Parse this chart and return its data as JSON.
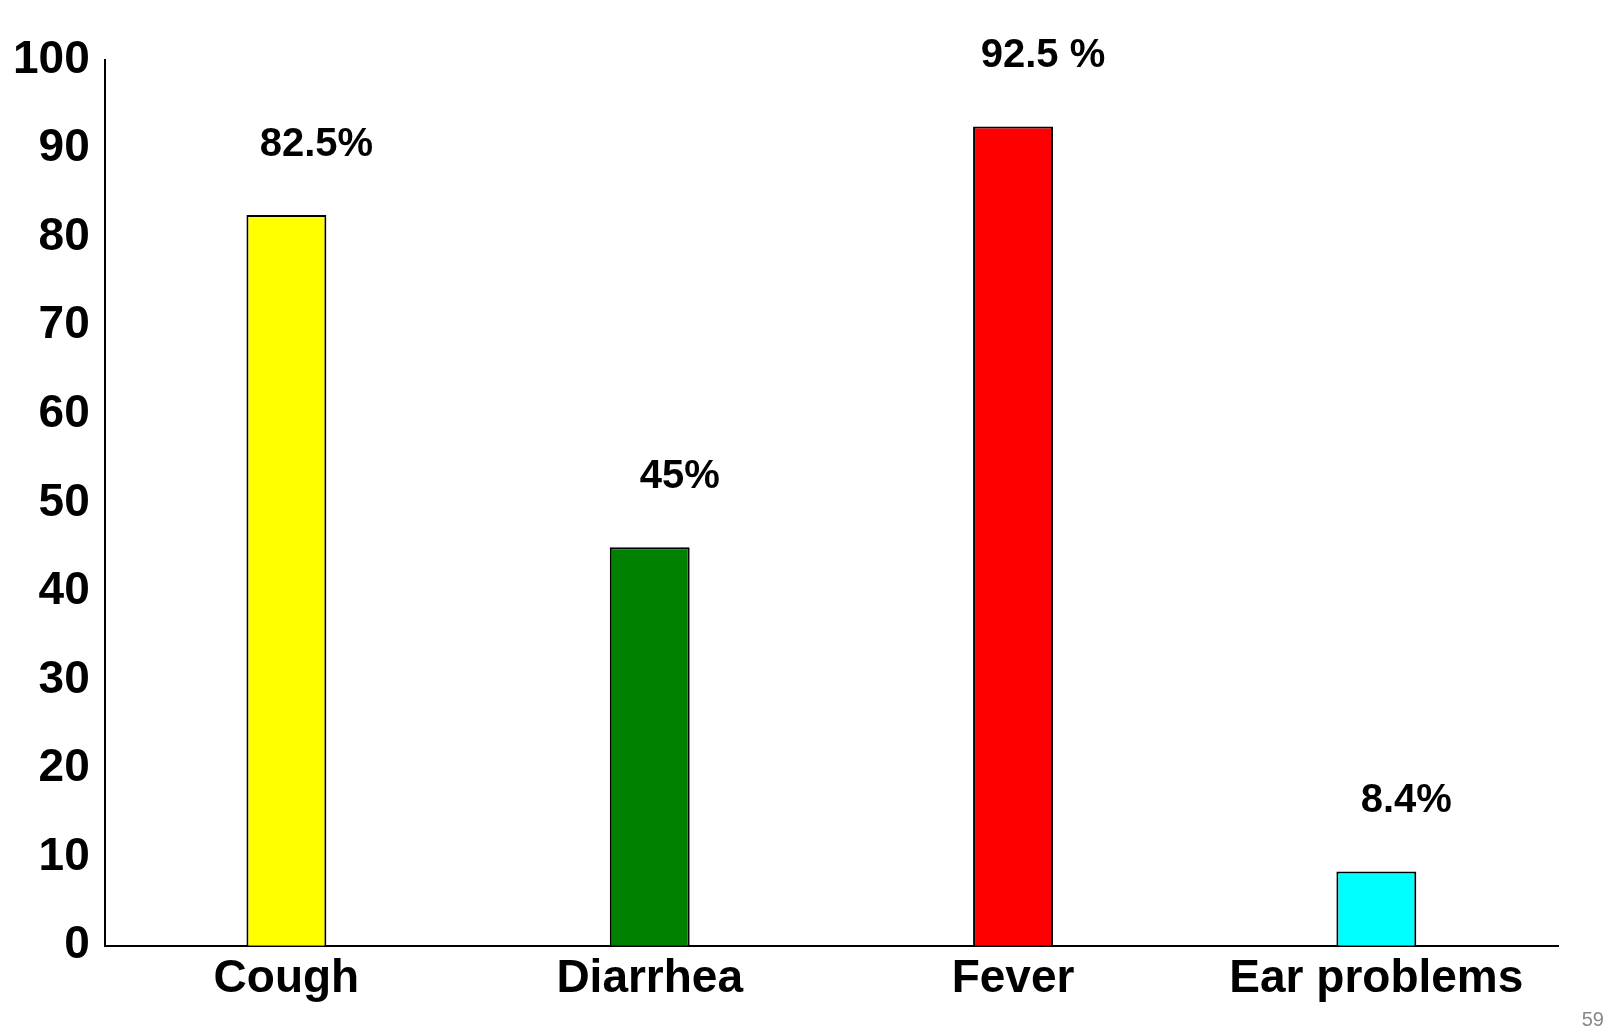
{
  "chart_data": {
    "type": "bar",
    "categories": [
      "Cough",
      "Diarrhea",
      "Fever",
      "Ear problems"
    ],
    "values": [
      82.5,
      45,
      92.5,
      8.4
    ],
    "colors": [
      "#ffff00",
      "#008000",
      "#ff0000",
      "#00ffff"
    ],
    "value_labels": [
      "82.5%",
      "45%",
      "92.5 %",
      "8.4%"
    ],
    "ylim": [
      0,
      100
    ],
    "yticks": [
      0,
      10,
      20,
      30,
      40,
      50,
      60,
      70,
      80,
      90,
      100
    ],
    "grid": false,
    "legend": false,
    "annotations": [
      "59"
    ]
  }
}
